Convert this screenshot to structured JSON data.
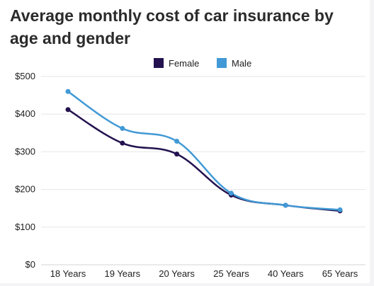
{
  "chart_data": {
    "type": "line",
    "title": "Average monthly cost of car insurance by age and gender",
    "xlabel": "",
    "ylabel": "",
    "categories": [
      "18 Years",
      "19 Years",
      "20 Years",
      "25 Years",
      "40 Years",
      "65 Years"
    ],
    "ylim": [
      0,
      500
    ],
    "yticks": [
      0,
      100,
      200,
      300,
      400,
      500
    ],
    "ytick_labels": [
      "$0",
      "$100",
      "$200",
      "$300",
      "$400",
      "$500"
    ],
    "grid": true,
    "legend_position": "top-center",
    "series": [
      {
        "name": "Female",
        "color": "#23124f",
        "values": [
          412,
          323,
          294,
          185,
          158,
          143
        ]
      },
      {
        "name": "Male",
        "color": "#4199d5",
        "values": [
          460,
          362,
          328,
          190,
          158,
          146
        ]
      }
    ]
  }
}
